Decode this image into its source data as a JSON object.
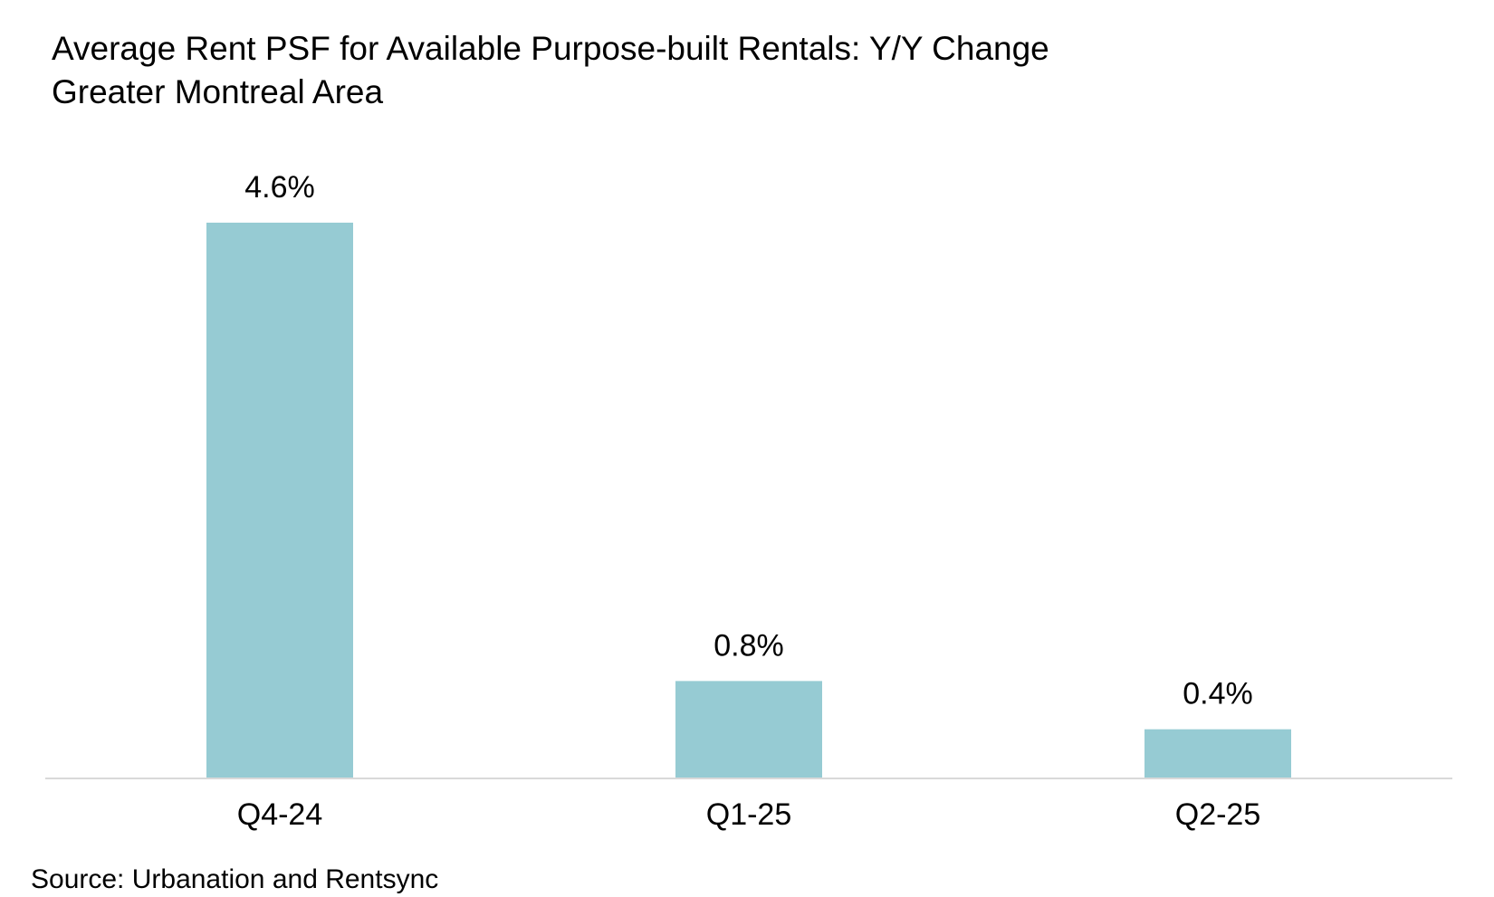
{
  "chart_data": {
    "type": "bar",
    "title": "Average Rent PSF for Available Purpose-built Rentals: Y/Y Change",
    "subtitle": "Greater Montreal Area",
    "categories": [
      "Q4-24",
      "Q1-25",
      "Q2-25"
    ],
    "values": [
      4.6,
      0.8,
      0.4
    ],
    "data_labels": [
      "4.6%",
      "0.8%",
      "0.4%"
    ],
    "unit": "%",
    "xlabel": "",
    "ylabel": "",
    "ylim": [
      0,
      4.6
    ],
    "grid": false,
    "legend": "none",
    "bar_color": "#96CBD3",
    "axis_color": "#D9D9D9"
  },
  "source": "Source: Urbanation and Rentsync"
}
